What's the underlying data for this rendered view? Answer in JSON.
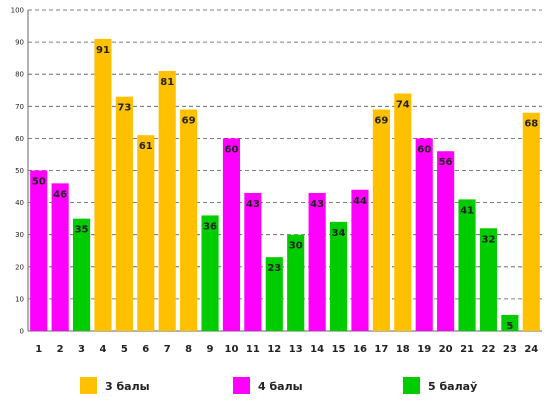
{
  "chart_data": {
    "type": "bar",
    "categories": [
      "1",
      "2",
      "3",
      "4",
      "5",
      "6",
      "7",
      "8",
      "9",
      "10",
      "11",
      "12",
      "13",
      "14",
      "15",
      "16",
      "17",
      "18",
      "19",
      "20",
      "21",
      "22",
      "23",
      "24"
    ],
    "values": [
      50,
      46,
      35,
      91,
      73,
      61,
      81,
      69,
      36,
      60,
      43,
      23,
      30,
      43,
      34,
      44,
      69,
      74,
      60,
      56,
      41,
      32,
      5,
      68
    ],
    "bar_series": [
      1,
      1,
      2,
      0,
      0,
      0,
      0,
      0,
      2,
      1,
      1,
      2,
      2,
      1,
      2,
      1,
      0,
      0,
      1,
      1,
      2,
      2,
      2,
      0
    ],
    "series": [
      {
        "name": "3 балы",
        "color": "#FFC000"
      },
      {
        "name": "4 балы",
        "color": "#FF00FF"
      },
      {
        "name": "5 балаў",
        "color": "#00CC00"
      }
    ],
    "y_ticks": [
      0,
      10,
      20,
      30,
      40,
      50,
      60,
      70,
      80,
      90,
      100
    ],
    "ylim": [
      0,
      100
    ],
    "grid": true,
    "legend_position": "bottom",
    "title": "",
    "xlabel": "",
    "ylabel": ""
  }
}
